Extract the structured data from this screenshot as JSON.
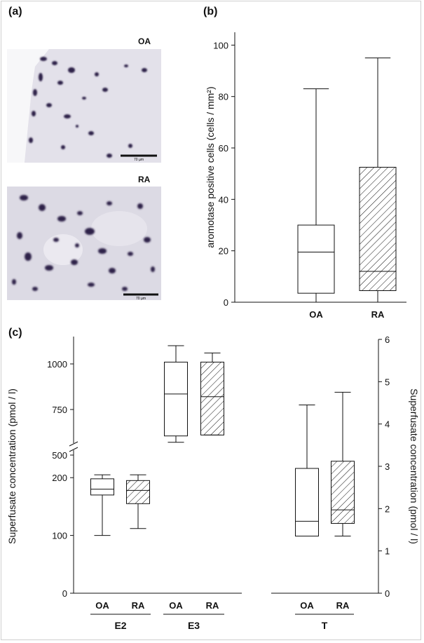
{
  "figure": {
    "panel_a_label": "(a)",
    "panel_b_label": "(b)",
    "panel_c_label": "(c)",
    "micrograph_top_label": "OA",
    "micrograph_bottom_label": "RA",
    "scale_bar_text": "70 µm"
  },
  "colors": {
    "stain": "#2e2448",
    "tissue_background": "#e4e2ea",
    "axis": "#111111"
  },
  "chart_data": [
    {
      "id": "b",
      "type": "box",
      "title": "",
      "ylabel": "aromotase positive cells (cells / mm²)",
      "ylim": [
        0,
        105
      ],
      "yticks": [
        "0",
        "20",
        "40",
        "60",
        "80",
        "100"
      ],
      "categories": [
        "OA",
        "RA"
      ],
      "boxes": [
        {
          "name": "OA",
          "min": 0,
          "q1": 3.5,
          "median": 19.5,
          "q3": 30,
          "max": 83,
          "hatched": false
        },
        {
          "name": "RA",
          "min": 0,
          "q1": 4.5,
          "median": 12,
          "q3": 52.5,
          "max": 95,
          "hatched": true
        }
      ]
    },
    {
      "id": "c",
      "type": "box",
      "ylabel_left": "Superfusate concentration (pmol / l)",
      "ylabel_right": "Superfusate concentration (pmol / l)",
      "left_axis_lower": {
        "range": [
          0,
          250
        ],
        "ticks": [
          "0",
          "100",
          "200"
        ]
      },
      "left_axis_upper": {
        "range": [
          450,
          1150
        ],
        "ticks": [
          "500",
          "750",
          "1000"
        ]
      },
      "right_axis": {
        "range": [
          0,
          6
        ],
        "ticks": [
          "0",
          "1",
          "2",
          "3",
          "4",
          "5",
          "6"
        ]
      },
      "axis_break": true,
      "groups": [
        {
          "name": "E2",
          "categories": [
            "OA",
            "RA"
          ]
        },
        {
          "name": "E3",
          "categories": [
            "OA",
            "RA"
          ]
        },
        {
          "name": "T",
          "categories": [
            "OA",
            "RA"
          ]
        }
      ],
      "boxes": [
        {
          "group": "E2",
          "name": "OA",
          "axis": "left",
          "min": 100,
          "q1": 170,
          "median": 180,
          "q3": 198,
          "max": 205,
          "hatched": false
        },
        {
          "group": "E2",
          "name": "RA",
          "axis": "left",
          "min": 112,
          "q1": 155,
          "median": 178,
          "q3": 195,
          "max": 205,
          "hatched": true
        },
        {
          "group": "E3",
          "name": "OA",
          "axis": "left",
          "min": 570,
          "q1": 605,
          "median": 835,
          "q3": 1010,
          "max": 1100,
          "hatched": false
        },
        {
          "group": "E3",
          "name": "RA",
          "axis": "left",
          "min": 610,
          "q1": 610,
          "median": 820,
          "q3": 1010,
          "max": 1060,
          "hatched": true
        },
        {
          "group": "T",
          "name": "OA",
          "axis": "right",
          "min": 1.35,
          "q1": 1.35,
          "median": 1.7,
          "q3": 2.95,
          "max": 4.45,
          "hatched": false
        },
        {
          "group": "T",
          "name": "RA",
          "axis": "right",
          "min": 1.35,
          "q1": 1.65,
          "median": 1.97,
          "q3": 3.12,
          "max": 4.75,
          "hatched": true
        }
      ]
    }
  ]
}
